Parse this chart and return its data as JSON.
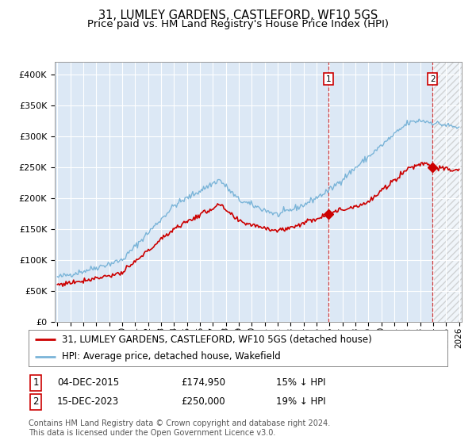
{
  "title": "31, LUMLEY GARDENS, CASTLEFORD, WF10 5GS",
  "subtitle": "Price paid vs. HM Land Registry's House Price Index (HPI)",
  "ylim": [
    0,
    420000
  ],
  "yticks": [
    0,
    50000,
    100000,
    150000,
    200000,
    250000,
    300000,
    350000,
    400000
  ],
  "ytick_labels": [
    "£0",
    "£50K",
    "£100K",
    "£150K",
    "£200K",
    "£250K",
    "£300K",
    "£350K",
    "£400K"
  ],
  "x_start_year": 1995,
  "x_end_year": 2026,
  "sale1_date": 2015.92,
  "sale1_price": 174950,
  "sale2_date": 2023.96,
  "sale2_price": 250000,
  "hpi_color": "#7ab4d8",
  "price_color": "#cc0000",
  "bg_color": "#dce8f5",
  "hatch_bg": "#ffffff",
  "legend_label_price": "31, LUMLEY GARDENS, CASTLEFORD, WF10 5GS (detached house)",
  "legend_label_hpi": "HPI: Average price, detached house, Wakefield",
  "footer": "Contains HM Land Registry data © Crown copyright and database right 2024.\nThis data is licensed under the Open Government Licence v3.0.",
  "title_fontsize": 10.5,
  "subtitle_fontsize": 9.5,
  "tick_fontsize": 8,
  "legend_fontsize": 8.5,
  "annot_fontsize": 8.5,
  "footer_fontsize": 7
}
